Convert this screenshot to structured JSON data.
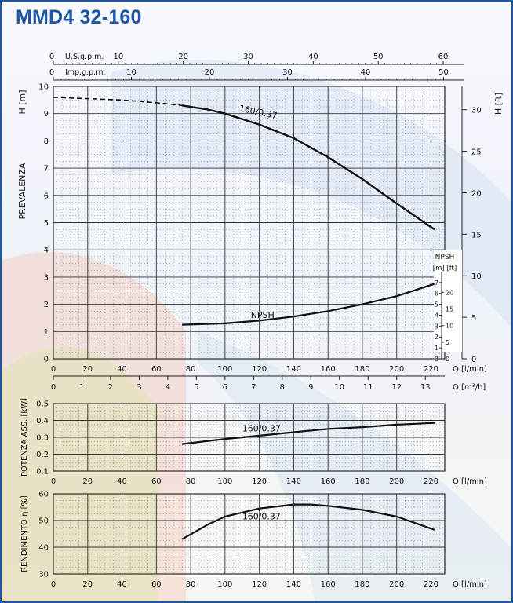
{
  "header": {
    "title": "MMD4 32-160"
  },
  "colors": {
    "brand": "#1e56a8",
    "curve": "#111111",
    "grid": "#555555"
  },
  "chart_data": [
    {
      "type": "line",
      "title": "",
      "xlabel": "Q [l/min]",
      "ylabel": "H [m]",
      "ylabel_left": "PREVALENZA",
      "ylabel_right": "H [ft]",
      "xlim": [
        0,
        228
      ],
      "ylim": [
        0,
        10
      ],
      "x_ticks": [
        0,
        20,
        40,
        60,
        80,
        100,
        120,
        140,
        160,
        180,
        200,
        220
      ],
      "y_ticks": [
        0,
        1,
        2,
        3,
        4,
        5,
        6,
        7,
        8,
        9,
        10
      ],
      "grid": true,
      "right_axis": {
        "label": "H [ft]",
        "ticks": [
          0,
          5,
          10,
          15,
          20,
          25,
          30
        ],
        "unit_factor_m_per_ft": 0.3048
      },
      "top_axes": [
        {
          "label": "U.S.g.p.m.",
          "ticks": [
            0,
            10,
            20,
            30,
            40,
            50,
            60
          ],
          "lpm_per_unit": 3.785
        },
        {
          "label": "Imp.g.p.m.",
          "ticks": [
            0,
            10,
            20,
            30,
            40,
            50
          ],
          "lpm_per_unit": 4.546
        }
      ],
      "series": [
        {
          "name": "160/0.37",
          "dashed_until_x": 75,
          "x": [
            0,
            20,
            40,
            60,
            75,
            90,
            100,
            120,
            140,
            160,
            180,
            200,
            222
          ],
          "y": [
            9.6,
            9.55,
            9.5,
            9.4,
            9.3,
            9.15,
            9.0,
            8.6,
            8.1,
            7.4,
            6.6,
            5.7,
            4.75
          ]
        },
        {
          "name": "NPSH",
          "x": [
            75,
            100,
            120,
            140,
            160,
            180,
            200,
            222
          ],
          "y": [
            1.25,
            1.3,
            1.4,
            1.55,
            1.75,
            2.0,
            2.3,
            2.75
          ]
        }
      ],
      "npsh_axis": {
        "label": "NPSH",
        "units": "[m] [ft]",
        "m_ticks": [
          0,
          1,
          2,
          3,
          4,
          5,
          6,
          7
        ],
        "ft_ticks": [
          0,
          5,
          10,
          15,
          20
        ]
      },
      "secondary_x_axis": {
        "label": "Q [m³/h]",
        "ticks": [
          0,
          1,
          2,
          3,
          4,
          5,
          6,
          7,
          8,
          9,
          10,
          11,
          12,
          13
        ]
      }
    },
    {
      "type": "line",
      "title": "",
      "xlabel": "Q [l/min]",
      "ylabel": "POTENZA ASS. [kW]",
      "xlim": [
        0,
        228
      ],
      "ylim": [
        0.1,
        0.5
      ],
      "x_ticks": [
        0,
        20,
        40,
        60,
        80,
        100,
        120,
        140,
        160,
        180,
        200,
        220
      ],
      "y_ticks": [
        0.1,
        0.2,
        0.3,
        0.4,
        0.5
      ],
      "grid": true,
      "series": [
        {
          "name": "160/0.37",
          "x": [
            75,
            100,
            120,
            140,
            160,
            180,
            200,
            222
          ],
          "y": [
            0.26,
            0.29,
            0.31,
            0.33,
            0.35,
            0.36,
            0.375,
            0.385
          ]
        }
      ]
    },
    {
      "type": "line",
      "title": "",
      "xlabel": "Q [l/min]",
      "ylabel": "RENDIMENTO η [%]",
      "xlim": [
        0,
        228
      ],
      "ylim": [
        30,
        60
      ],
      "x_ticks": [
        0,
        20,
        40,
        60,
        80,
        100,
        120,
        140,
        160,
        180,
        200,
        220
      ],
      "y_ticks": [
        30,
        40,
        50,
        60
      ],
      "grid": true,
      "series": [
        {
          "name": "160/0.37",
          "x": [
            75,
            90,
            100,
            120,
            140,
            150,
            160,
            180,
            200,
            222
          ],
          "y": [
            43,
            48.5,
            51.5,
            54.5,
            56,
            56,
            55.5,
            54,
            51.5,
            46.5
          ]
        }
      ]
    }
  ]
}
